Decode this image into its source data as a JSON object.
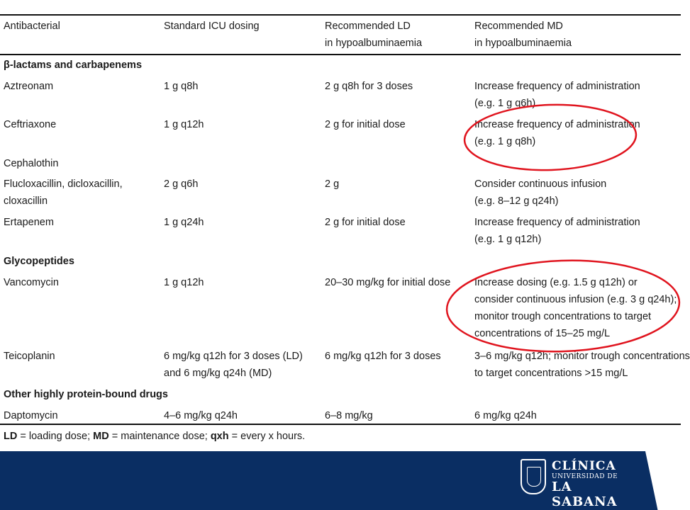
{
  "table": {
    "headers": {
      "antibacterial": "Antibacterial",
      "standard": "Standard ICU dosing",
      "ld_line1": "Recommended LD",
      "ld_line2": "in hypoalbuminaemia",
      "md_line1": "Recommended MD",
      "md_line2": "in hypoalbuminaemia"
    },
    "sections": {
      "beta_lactams": "β-lactams and carbapenems",
      "glycopeptides": "Glycopeptides",
      "other": "Other highly protein-bound drugs"
    },
    "rows": {
      "aztreonam": {
        "drug": "Aztreonam",
        "std": "1 g q8h",
        "ld": "2 g q8h for 3 doses",
        "md1": "Increase frequency of administration",
        "md2": "(e.g. 1 g q6h)"
      },
      "ceftriaxone": {
        "drug": "Ceftriaxone",
        "std": "1 g q12h",
        "ld": "2 g for initial dose",
        "md1": "Increase frequency of administration",
        "md2": "(e.g. 1 g q8h)"
      },
      "cephalothin": {
        "drug": "Cephalothin"
      },
      "flucloxacillin": {
        "drug1": "Flucloxacillin, dicloxacillin,",
        "drug2": "cloxacillin",
        "std": "2 g q6h",
        "ld": "2 g",
        "md1": "Consider continuous infusion",
        "md2": "(e.g. 8–12 g q24h)"
      },
      "ertapenem": {
        "drug": "Ertapenem",
        "std": "1 g q24h",
        "ld": "2 g for initial dose",
        "md1": "Increase frequency of administration",
        "md2": "(e.g. 1 g q12h)"
      },
      "vancomycin": {
        "drug": "Vancomycin",
        "std": "1 g q12h",
        "ld": "20–30 mg/kg for initial dose",
        "md1": "Increase dosing (e.g. 1.5 g q12h) or",
        "md2": "consider continuous infusion (e.g. 3 g q24h);",
        "md3": "monitor trough concentrations to target",
        "md4": "concentrations of 15–25 mg/L"
      },
      "teicoplanin": {
        "drug": "Teicoplanin",
        "std1": "6 mg/kg q12h for 3 doses (LD)",
        "std2": "and 6 mg/kg q24h (MD)",
        "ld": "6 mg/kg q12h for 3 doses",
        "md1": "3–6 mg/kg q12h; monitor trough concentrations",
        "md2": "to target concentrations >15 mg/L"
      },
      "daptomycin": {
        "drug": "Daptomycin",
        "std": "4–6 mg/kg q24h",
        "ld": "6–8 mg/kg",
        "md": "6 mg/kg q24h"
      }
    },
    "footnote": {
      "ld_abbr": "LD",
      "ld_def": " = loading dose; ",
      "md_abbr": "MD",
      "md_def": " = maintenance dose; ",
      "q_abbr": "qxh",
      "q_def": " = every x hours."
    }
  },
  "annotations": {
    "circle_color": "#e0141e"
  },
  "footer": {
    "bar_color": "#0a2e63",
    "logo_line1": "CLÍNICA",
    "logo_line2": "UNIVERSIDAD DE",
    "logo_line3": "LA SABANA",
    "crest_icon": "shield-crest-icon"
  }
}
